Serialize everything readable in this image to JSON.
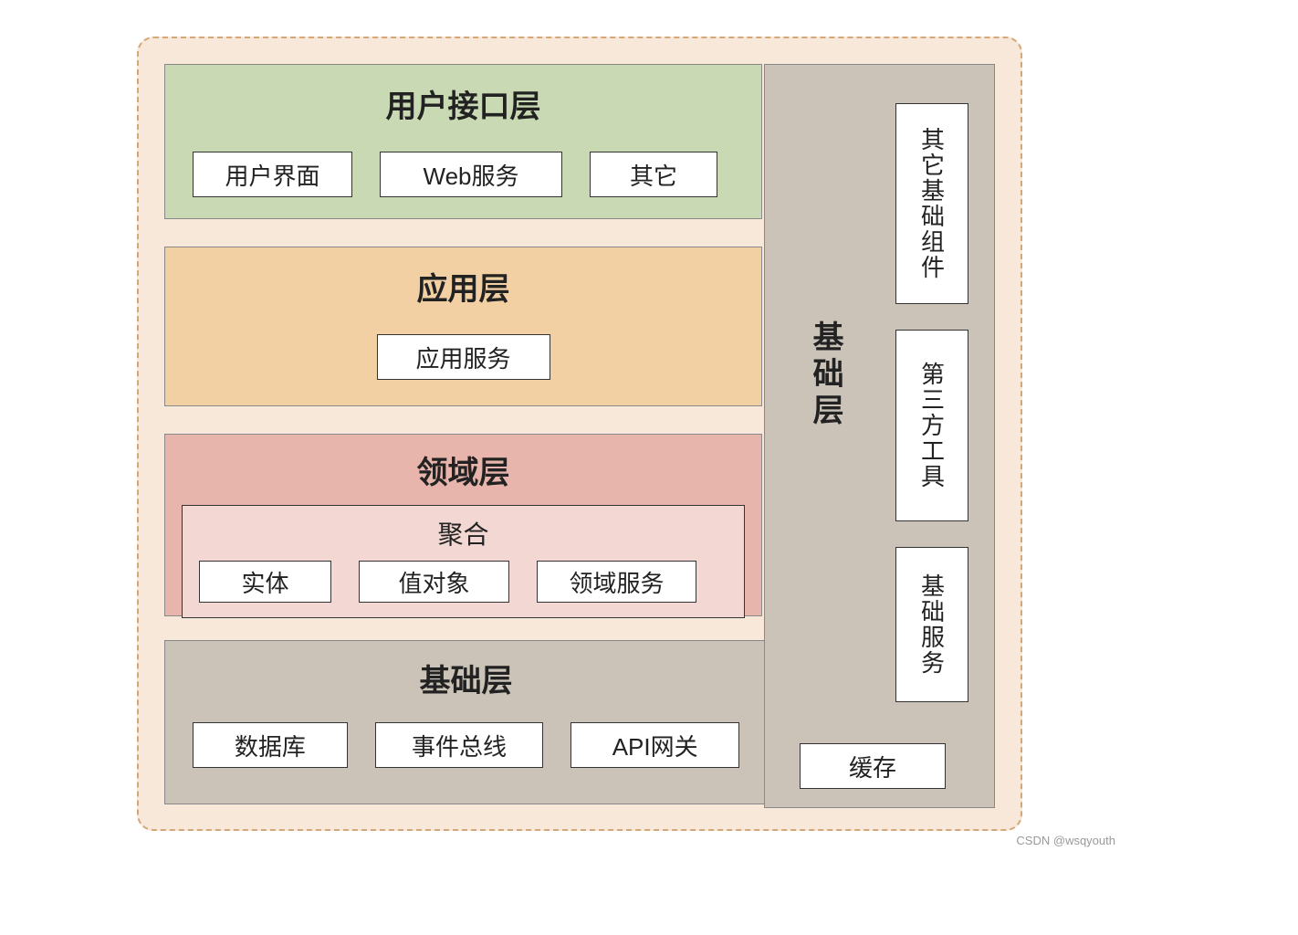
{
  "diagram": {
    "type": "layered-architecture",
    "outer_bg": "#f7e8da",
    "outer_border": "#d4a77a",
    "item_bg": "#ffffff",
    "item_border": "#333333",
    "title_fontsize": 34,
    "item_fontsize": 26
  },
  "layers": {
    "ui": {
      "title": "用户接口层",
      "bg": "#c8d9b3",
      "items": [
        "用户界面",
        "Web服务",
        "其它"
      ]
    },
    "app": {
      "title": "应用层",
      "bg": "#f2d0a4",
      "items": [
        "应用服务"
      ]
    },
    "domain": {
      "title": "领域层",
      "bg": "#e8b5ac",
      "aggregate_title": "聚合",
      "aggregate_bg": "#f3d7d2",
      "items": [
        "实体",
        "值对象",
        "领域服务"
      ]
    },
    "infra": {
      "title_h": "基础层",
      "title_v": "基础层",
      "bg": "#cbc2b8",
      "h_items": [
        "数据库",
        "事件总线",
        "API网关",
        "缓存"
      ],
      "v_items": [
        "其它基础组件",
        "第三方工具",
        "基础服务"
      ]
    }
  },
  "watermark": "CSDN @wsqyouth"
}
